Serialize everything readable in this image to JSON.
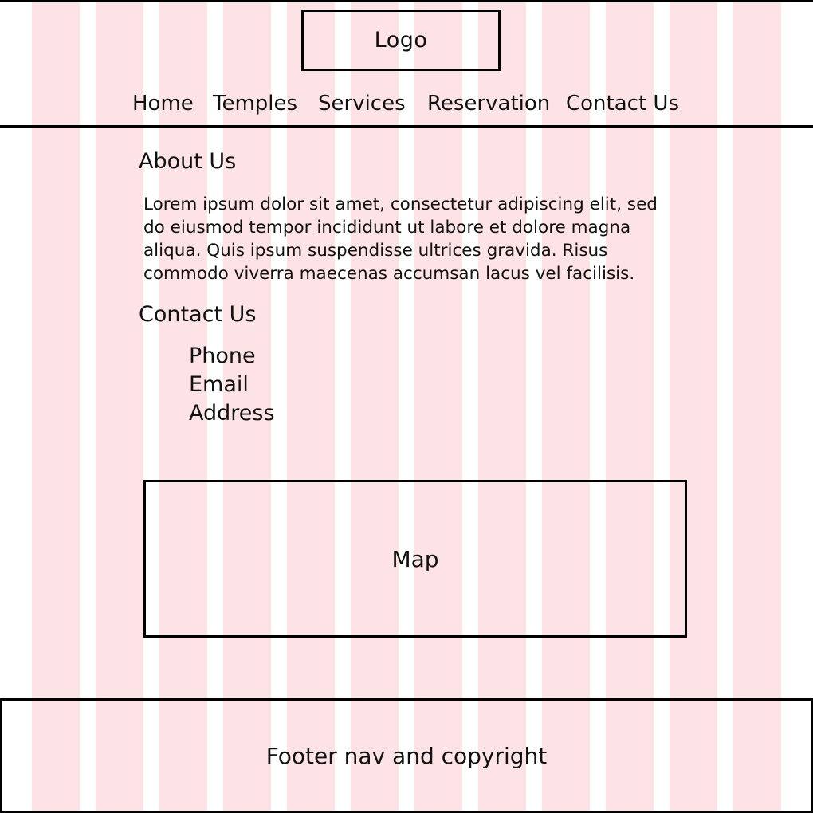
{
  "header": {
    "logo_label": "Logo"
  },
  "nav": {
    "items": [
      {
        "label": "Home"
      },
      {
        "label": "Temples"
      },
      {
        "label": "Services"
      },
      {
        "label": "Reservation"
      },
      {
        "label": "Contact Us"
      }
    ]
  },
  "about": {
    "heading": "About Us",
    "body": "Lorem ipsum dolor sit amet, consectetur adipiscing elit, sed do eiusmod tempor incididunt ut labore et dolore magna aliqua. Quis ipsum suspendisse ultrices gravida. Risus commodo viverra maecenas accumsan lacus vel facilisis."
  },
  "contact": {
    "heading": "Contact Us",
    "items": [
      {
        "label": "Phone"
      },
      {
        "label": "Email"
      },
      {
        "label": "Address"
      }
    ]
  },
  "map": {
    "label": "Map"
  },
  "footer": {
    "label": "Footer nav and copyright"
  },
  "colors": {
    "grid_column": "#fde3e5",
    "border": "#000000",
    "background": "#ffffff"
  }
}
